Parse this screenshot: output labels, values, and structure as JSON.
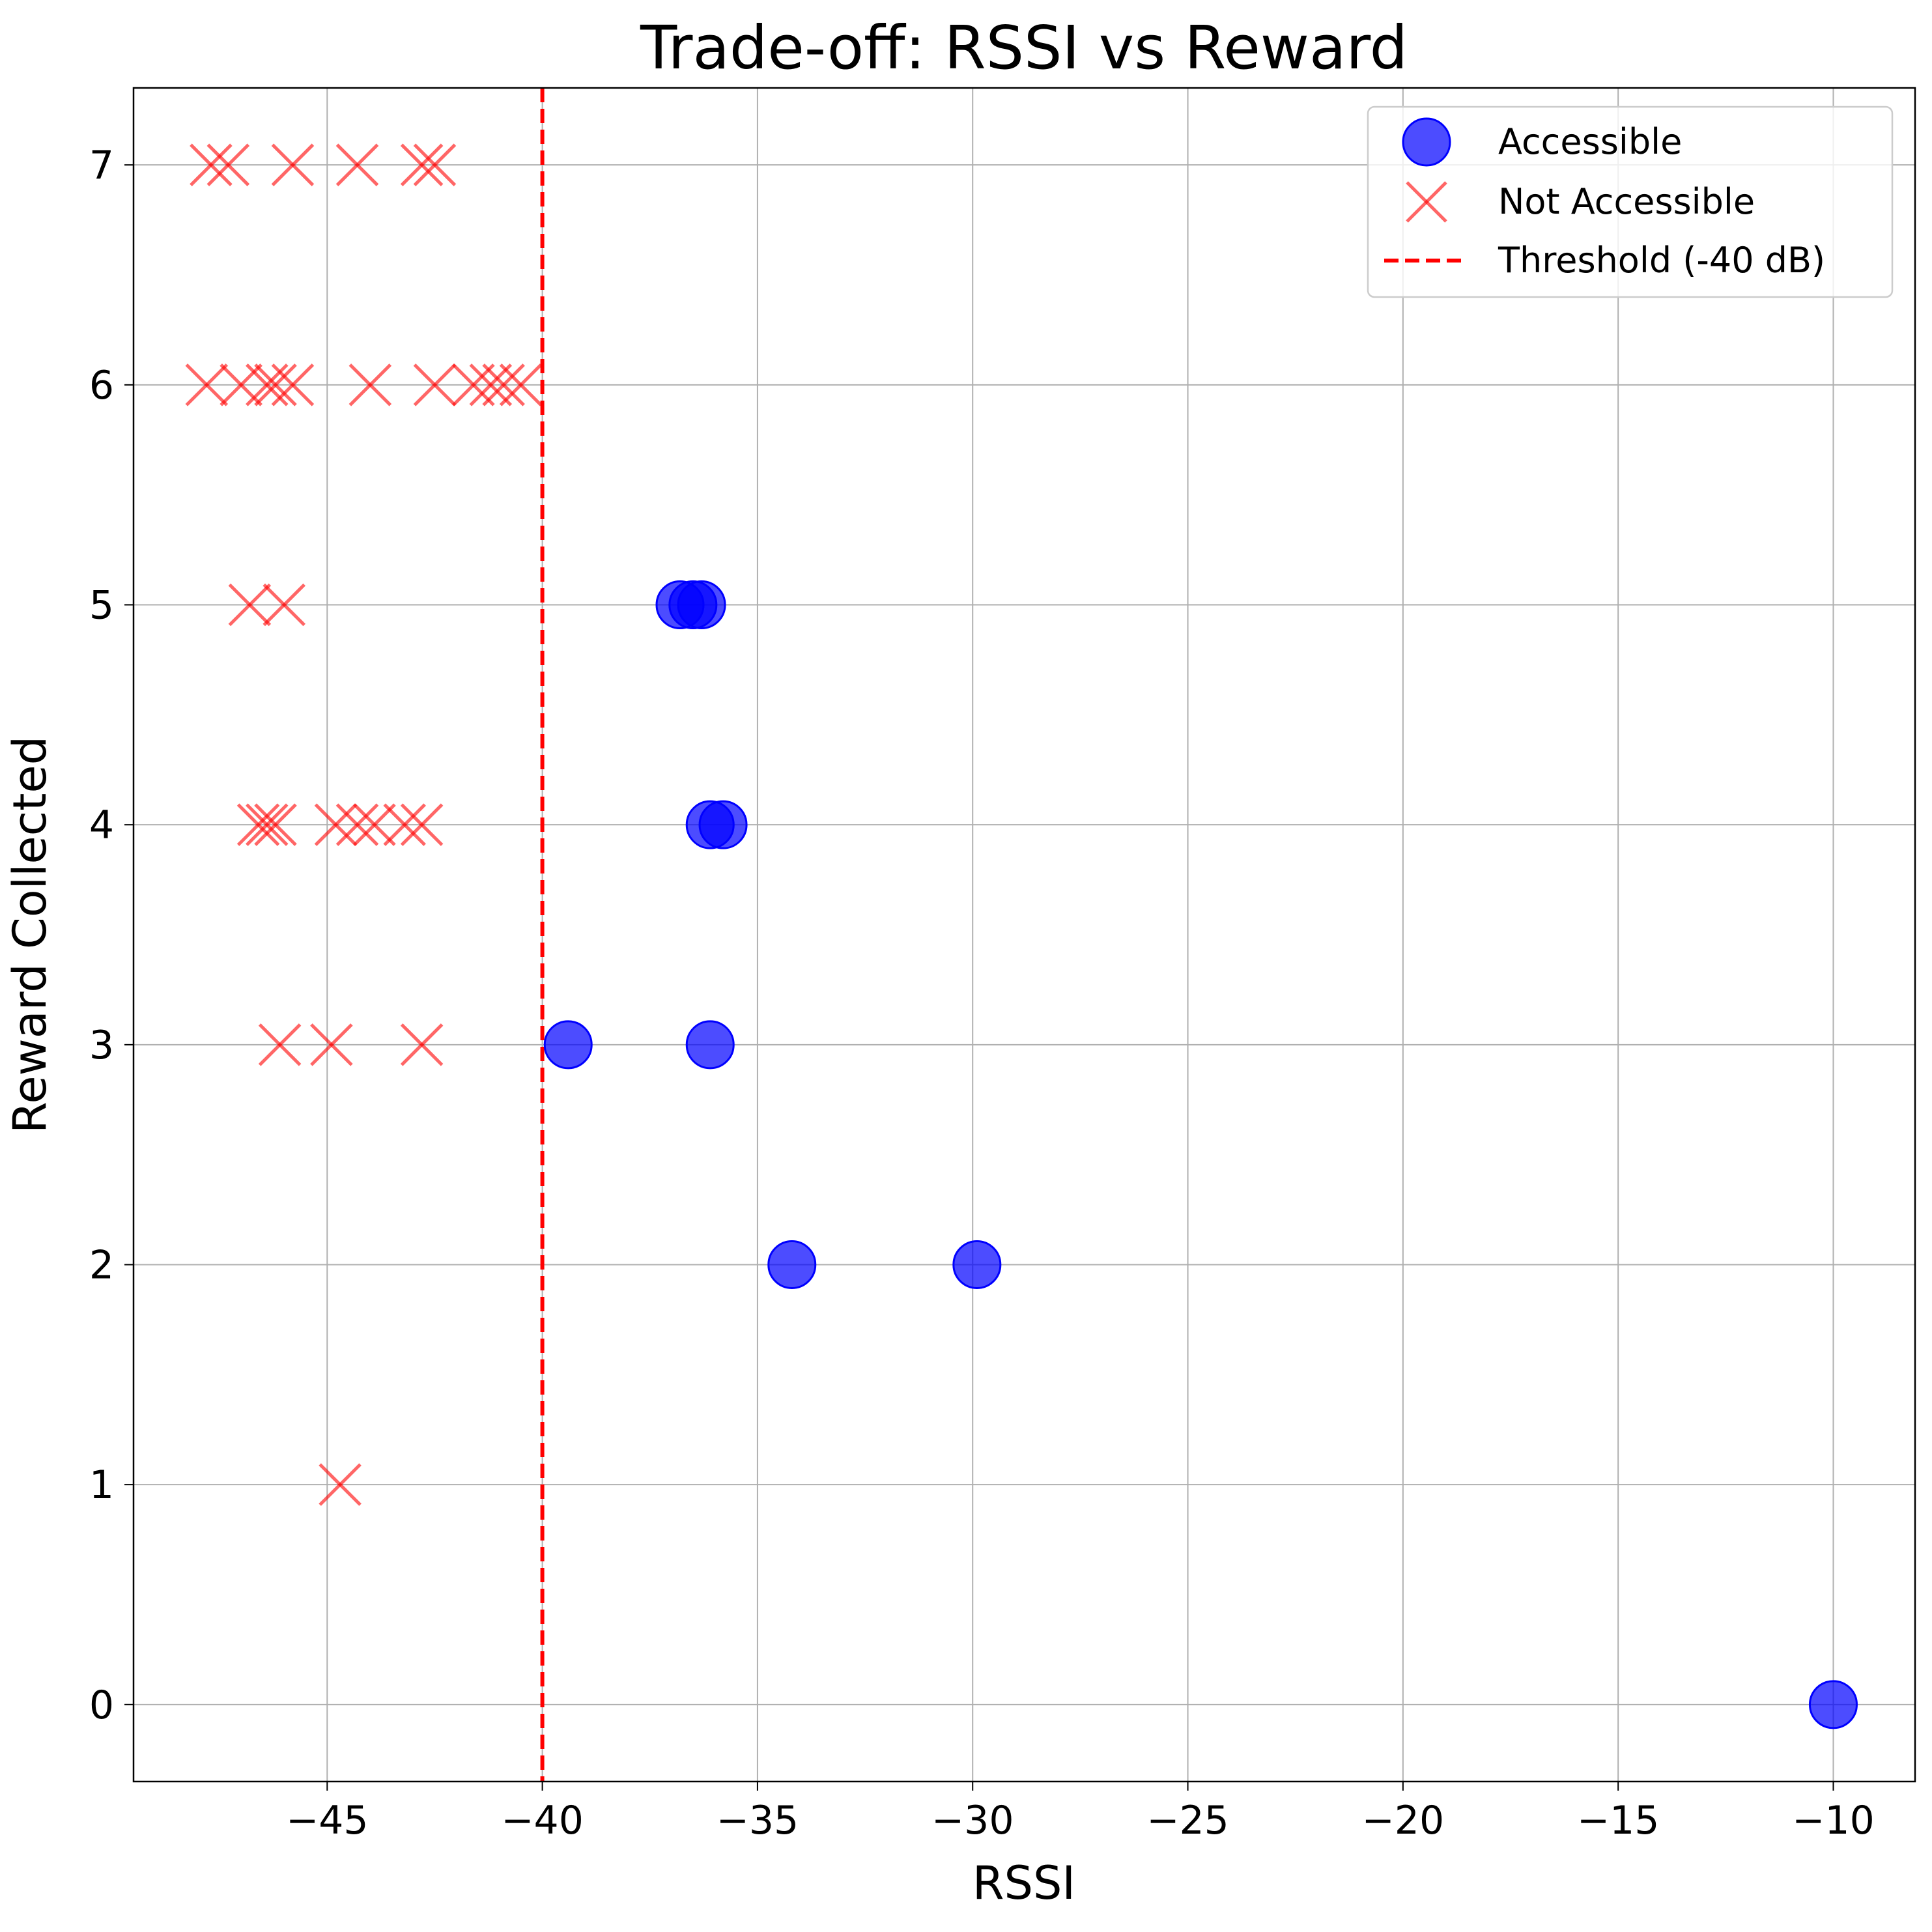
{
  "chart_data": {
    "type": "scatter",
    "title": "Trade-off: RSSI vs Reward",
    "xlabel": "RSSI",
    "ylabel": "Reward Collected",
    "xlim": [
      -49.5,
      -8.1
    ],
    "ylim": [
      -0.35,
      7.35
    ],
    "xticks": [
      -45,
      -40,
      -35,
      -30,
      -25,
      -20,
      -15,
      -10
    ],
    "xtick_labels": [
      "−45",
      "−40",
      "−35",
      "−30",
      "−25",
      "−20",
      "−15",
      "−10"
    ],
    "yticks": [
      0,
      1,
      2,
      3,
      4,
      5,
      6,
      7
    ],
    "ytick_labels": [
      "0",
      "1",
      "2",
      "3",
      "4",
      "5",
      "6",
      "7"
    ],
    "grid": true,
    "legend_position": "top-right",
    "threshold": {
      "name": "Threshold (-40 dB)",
      "x": -40,
      "color": "#ff0000"
    },
    "series": [
      {
        "name": "Accessible",
        "marker": "circle",
        "color": "#0000ff",
        "points": [
          [
            -36.8,
            5
          ],
          [
            -36.5,
            5
          ],
          [
            -36.3,
            5
          ],
          [
            -36.1,
            4
          ],
          [
            -35.8,
            4
          ],
          [
            -39.4,
            3
          ],
          [
            -36.1,
            3
          ],
          [
            -34.2,
            2
          ],
          [
            -29.9,
            2
          ],
          [
            -10.0,
            0
          ]
        ]
      },
      {
        "name": "Not Accessible",
        "marker": "x",
        "color": "#ff0000",
        "points": [
          [
            -47.7,
            7
          ],
          [
            -47.3,
            7
          ],
          [
            -45.8,
            7
          ],
          [
            -44.3,
            7
          ],
          [
            -42.8,
            7
          ],
          [
            -42.5,
            7
          ],
          [
            -47.8,
            6
          ],
          [
            -47.0,
            6
          ],
          [
            -46.4,
            6
          ],
          [
            -46.2,
            6
          ],
          [
            -45.8,
            6
          ],
          [
            -44.0,
            6
          ],
          [
            -42.5,
            6
          ],
          [
            -41.6,
            6
          ],
          [
            -41.2,
            6
          ],
          [
            -40.9,
            6
          ],
          [
            -40.5,
            6
          ],
          [
            -46.8,
            5
          ],
          [
            -46.0,
            5
          ],
          [
            -46.6,
            4
          ],
          [
            -46.4,
            4
          ],
          [
            -46.2,
            4
          ],
          [
            -44.8,
            4
          ],
          [
            -44.3,
            4
          ],
          [
            -43.9,
            4
          ],
          [
            -43.2,
            4
          ],
          [
            -42.8,
            4
          ],
          [
            -46.1,
            3
          ],
          [
            -44.9,
            3
          ],
          [
            -42.8,
            3
          ],
          [
            -44.7,
            1
          ]
        ]
      }
    ]
  }
}
